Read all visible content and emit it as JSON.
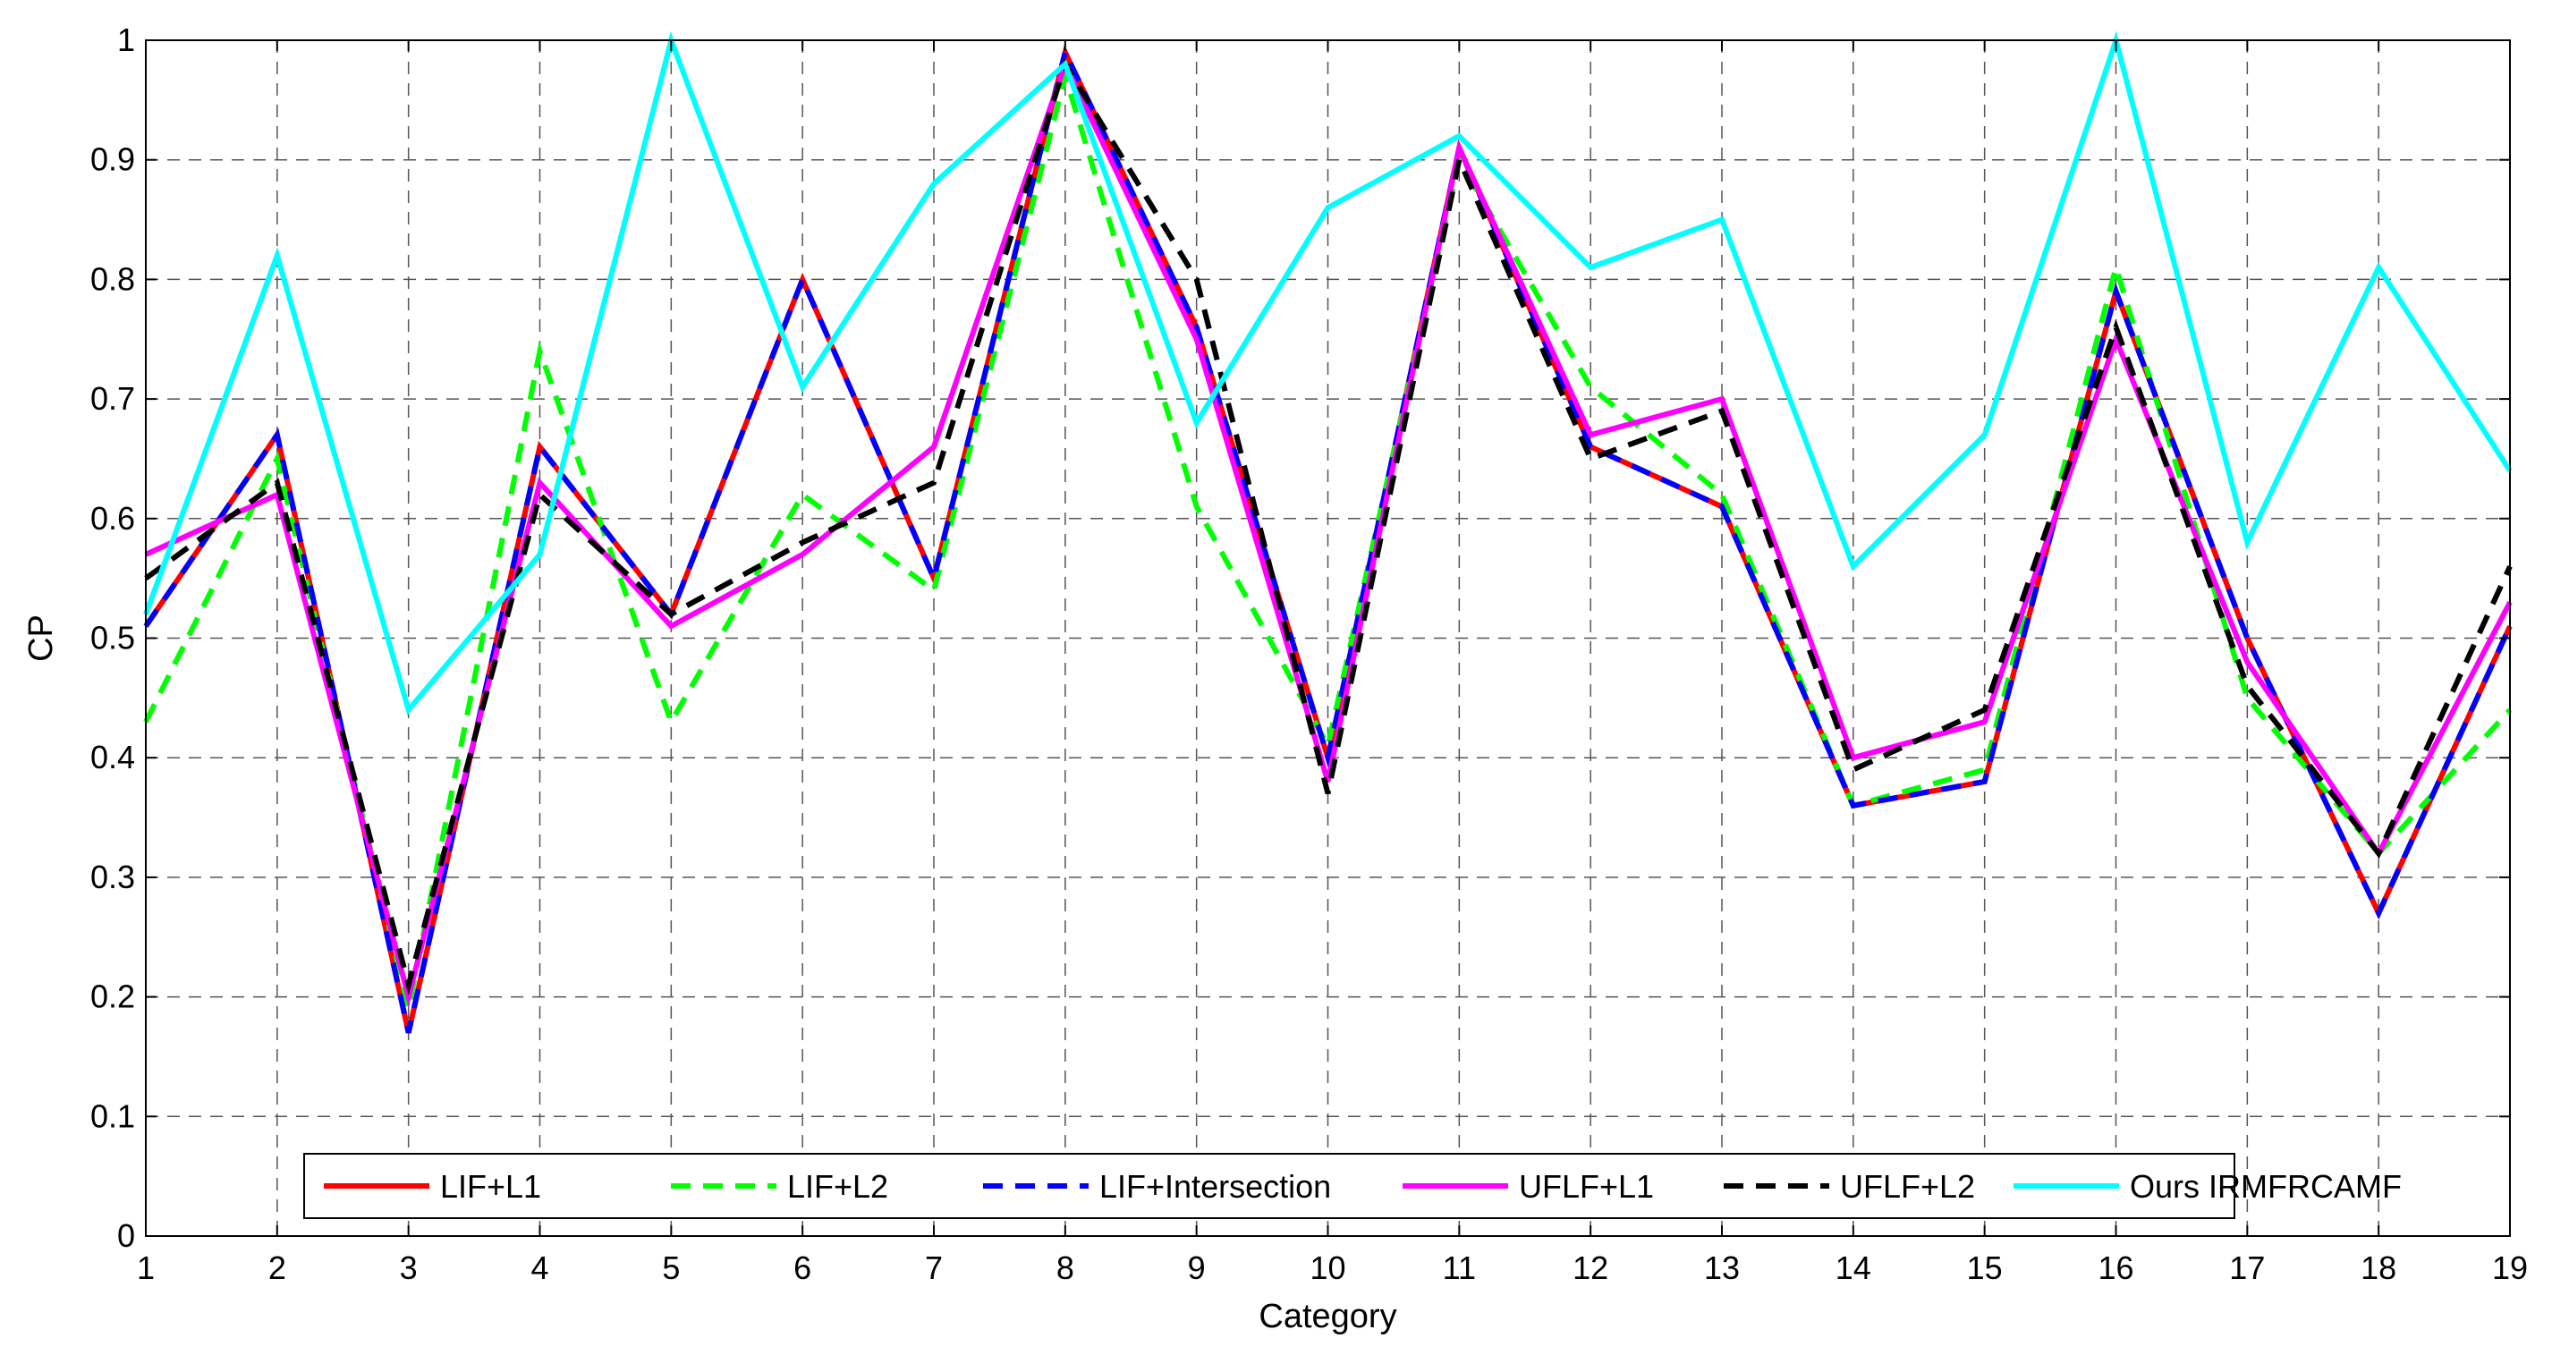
{
  "chart_data": {
    "type": "line",
    "xlabel": "Category",
    "ylabel": "CP",
    "xlim": [
      1,
      19
    ],
    "ylim": [
      0,
      1
    ],
    "grid": true,
    "legend_position": "bottom-center",
    "x": [
      1,
      2,
      3,
      4,
      5,
      6,
      7,
      8,
      9,
      10,
      11,
      12,
      13,
      14,
      15,
      16,
      17,
      18,
      19
    ],
    "x_ticks": [
      "1",
      "2",
      "3",
      "4",
      "5",
      "6",
      "7",
      "8",
      "9",
      "10",
      "11",
      "12",
      "13",
      "14",
      "15",
      "16",
      "17",
      "18",
      "19"
    ],
    "y_ticks": [
      "0",
      "0.1",
      "0.2",
      "0.3",
      "0.4",
      "0.5",
      "0.6",
      "0.7",
      "0.8",
      "0.9",
      "1"
    ],
    "series": [
      {
        "name": "LIF+L1",
        "color": "#ff0000",
        "dash": "solid",
        "values": [
          0.51,
          0.67,
          0.17,
          0.66,
          0.52,
          0.8,
          0.55,
          0.99,
          0.76,
          0.4,
          0.91,
          0.66,
          0.61,
          0.36,
          0.38,
          0.79,
          0.5,
          0.27,
          0.51
        ]
      },
      {
        "name": "LIF+L2",
        "color": "#00ff00",
        "dash": "dashed",
        "values": [
          0.43,
          0.65,
          0.19,
          0.74,
          0.43,
          0.62,
          0.54,
          0.97,
          0.61,
          0.41,
          0.9,
          0.71,
          0.62,
          0.36,
          0.39,
          0.81,
          0.45,
          0.32,
          0.44
        ]
      },
      {
        "name": "LIF+Intersection",
        "color": "#0000ff",
        "dash": "dashed",
        "values": [
          0.51,
          0.67,
          0.17,
          0.66,
          0.52,
          0.8,
          0.55,
          0.99,
          0.76,
          0.4,
          0.91,
          0.66,
          0.61,
          0.36,
          0.38,
          0.79,
          0.5,
          0.27,
          0.51
        ]
      },
      {
        "name": "UFLF+L1",
        "color": "#ff00ff",
        "dash": "solid",
        "values": [
          0.57,
          0.62,
          0.2,
          0.63,
          0.51,
          0.57,
          0.66,
          0.98,
          0.75,
          0.38,
          0.91,
          0.67,
          0.7,
          0.4,
          0.43,
          0.75,
          0.48,
          0.32,
          0.53
        ]
      },
      {
        "name": "UFLF+L2",
        "color": "#000000",
        "dash": "dashed",
        "values": [
          0.55,
          0.63,
          0.21,
          0.62,
          0.52,
          0.58,
          0.63,
          0.98,
          0.8,
          0.37,
          0.9,
          0.65,
          0.69,
          0.39,
          0.44,
          0.76,
          0.46,
          0.32,
          0.56
        ]
      },
      {
        "name": "Ours IRMFRCAMF",
        "color": "#00ffff",
        "dash": "solid",
        "values": [
          0.52,
          0.82,
          0.44,
          0.57,
          1.0,
          0.71,
          0.88,
          0.98,
          0.68,
          0.86,
          0.92,
          0.81,
          0.85,
          0.56,
          0.67,
          1.0,
          0.58,
          0.81,
          0.64
        ]
      }
    ]
  }
}
